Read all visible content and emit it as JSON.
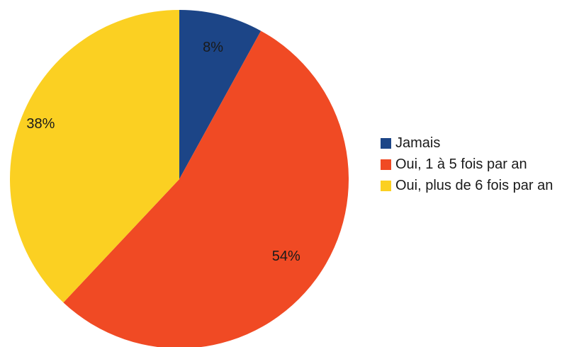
{
  "chart_data": {
    "type": "pie",
    "title": "",
    "legend_position": "right",
    "slices": [
      {
        "label": "Jamais",
        "value": 8,
        "display": "8%",
        "color": "#1c4587"
      },
      {
        "label": "Oui, 1 à 5 fois par an",
        "value": 54,
        "display": "54%",
        "color": "#f04a24"
      },
      {
        "label": "Oui, plus de 6 fois par an",
        "value": 38,
        "display": "38%",
        "color": "#fbd022"
      }
    ]
  }
}
